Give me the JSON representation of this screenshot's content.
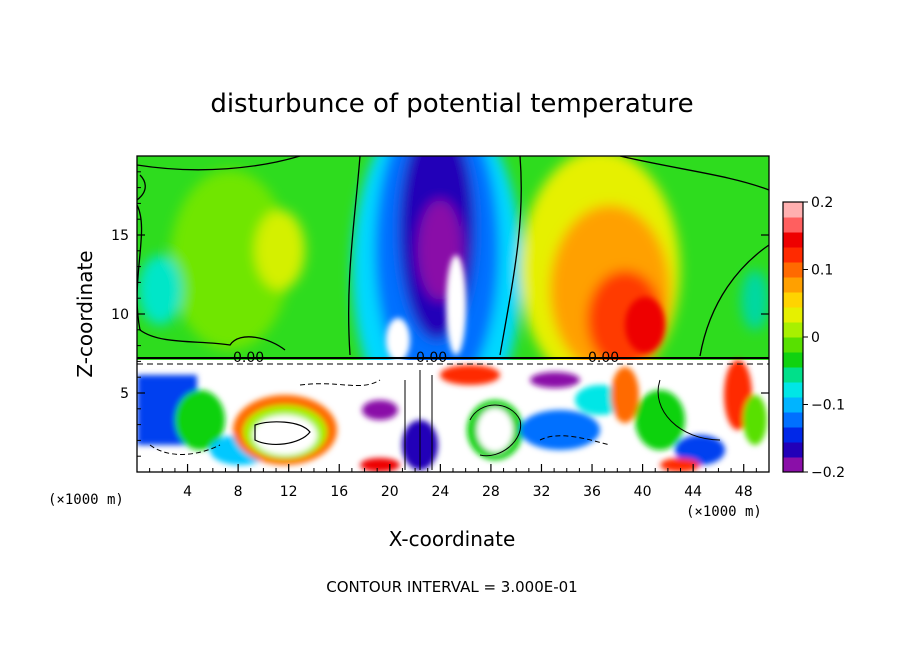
{
  "chart_data": {
    "type": "heatmap",
    "title": "disturbunce of potential temperature",
    "xlabel": "X-coordinate",
    "ylabel": "Z-coordinate",
    "x_unit": "(×1000 m)",
    "footer": "CONTOUR INTERVAL = 3.000E-01",
    "xlim": [
      0,
      50
    ],
    "ylim": [
      0,
      20
    ],
    "x_ticks": [
      4,
      8,
      12,
      16,
      20,
      24,
      28,
      32,
      36,
      40,
      44,
      48
    ],
    "y_ticks": [
      5,
      10,
      15
    ],
    "colorbar": {
      "range": [
        -0.2,
        0.2
      ],
      "tick_values": [
        0.2,
        0.1,
        0,
        -0.1,
        -0.2
      ],
      "tick_labels": [
        "0.2",
        "0.1",
        "0",
        "−0.1",
        "−0.2"
      ],
      "colors": [
        "#8a0fa8",
        "#2200b8",
        "#0028e8",
        "#0070ff",
        "#00b4ff",
        "#00e6e6",
        "#00e08a",
        "#10d210",
        "#58e000",
        "#a8f000",
        "#e6f000",
        "#ffd400",
        "#ffa000",
        "#ff6a00",
        "#ff2a00",
        "#ee0000",
        "#ff5f5f",
        "#ffb0b0"
      ]
    },
    "contour_label": "0.00",
    "regions": [
      {
        "name": "upper-background",
        "x": [
          0,
          50
        ],
        "z": [
          7.2,
          20
        ],
        "value": 0.0
      },
      {
        "name": "cold-core",
        "x_center": 24.5,
        "z_range": [
          7.2,
          20
        ],
        "min_value": -0.2
      },
      {
        "name": "warm-region",
        "x_center": 38,
        "z_range": [
          7.2,
          20
        ],
        "max_value": 0.14
      },
      {
        "name": "lower-layer",
        "x": [
          0,
          50
        ],
        "z": [
          0,
          7.2
        ],
        "value_range": [
          -0.2,
          0.2
        ]
      }
    ],
    "grid": false
  }
}
